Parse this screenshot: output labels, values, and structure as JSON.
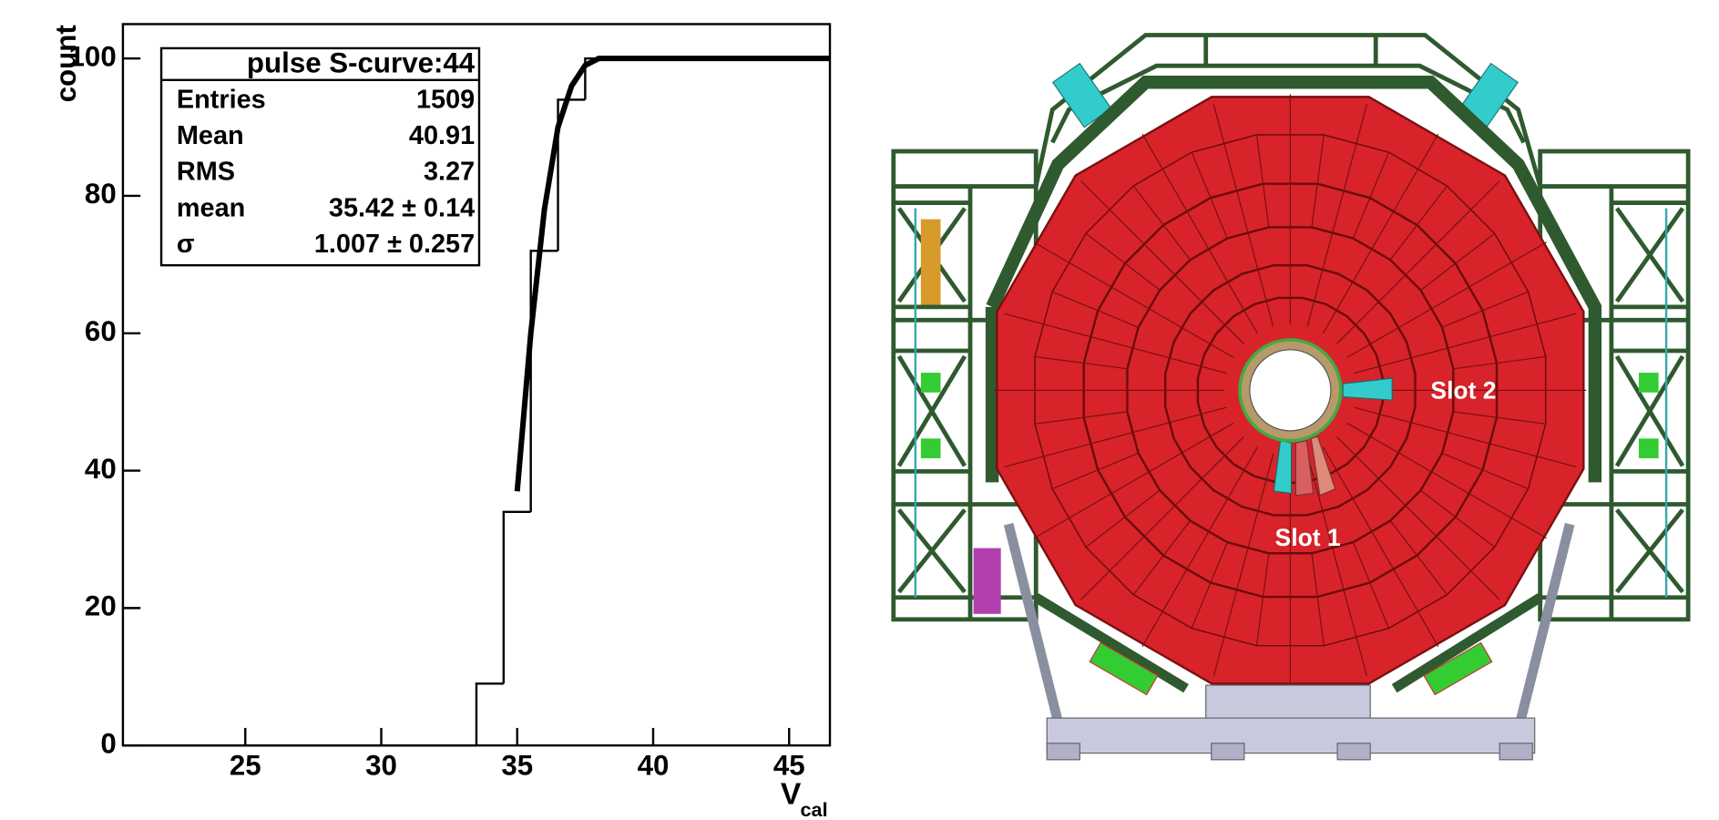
{
  "chart_data": {
    "type": "histogram",
    "y_label": "count",
    "x_label": "V",
    "x_label_sub": "cal",
    "bins": [
      20.5,
      21.5,
      22.5,
      23.5,
      24.5,
      25.5,
      26.5,
      27.5,
      28.5,
      29.5,
      30.5,
      31.5,
      32.5,
      33.5,
      34.5,
      35.5,
      36.5,
      37.5,
      38.5,
      39.5,
      40.5,
      41.5,
      42.5,
      43.5,
      44.5,
      45.5,
      46.5
    ],
    "values": [
      0,
      0,
      0,
      0,
      0,
      0,
      0,
      0,
      0,
      0,
      0,
      0,
      0,
      9,
      34,
      72,
      94,
      100,
      100,
      100,
      100,
      100,
      100,
      100,
      100,
      100
    ],
    "color": "#000000",
    "fit": {
      "x": [
        35.0,
        35.5,
        36.0,
        36.5,
        37.0,
        37.5,
        38.0,
        46.5
      ],
      "y": [
        37,
        60,
        78,
        90,
        96,
        99,
        100,
        100
      ],
      "color": "#000000"
    },
    "xlim": [
      20.5,
      46.5
    ],
    "xticks": [
      25,
      30,
      35,
      40,
      45
    ],
    "ylim": [
      0,
      105
    ],
    "yticks": [
      0,
      20,
      40,
      60,
      80,
      100
    ],
    "stats": {
      "title": "pulse S-curve:44",
      "rows": [
        [
          "Entries",
          "1509"
        ],
        [
          "Mean",
          "40.91"
        ],
        [
          "RMS",
          "3.27"
        ],
        [
          "mean",
          "35.42 ± 0.14"
        ],
        [
          "σ",
          "1.007 ± 0.257"
        ]
      ]
    }
  },
  "diagram": {
    "labels": [
      "Slot 2",
      "Slot 1"
    ]
  }
}
